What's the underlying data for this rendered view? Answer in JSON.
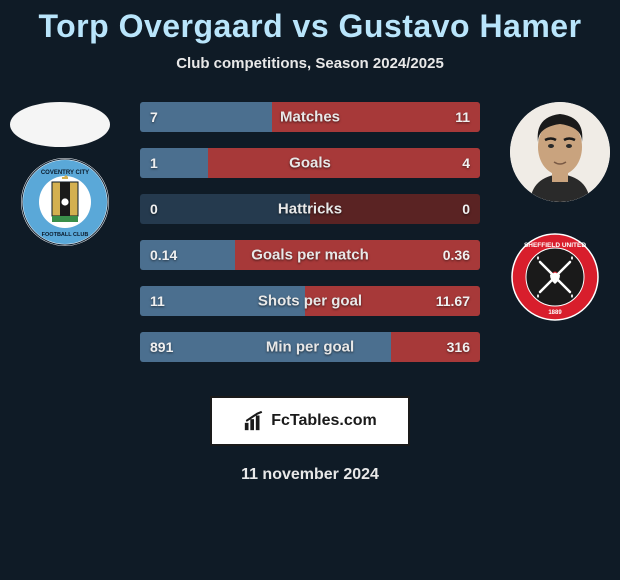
{
  "title": "Torp Overgaard vs Gustavo Hamer",
  "subtitle": "Club competitions, Season 2024/2025",
  "date": "11 november 2024",
  "footer_label": "FcTables.com",
  "colors": {
    "background": "#0f1b26",
    "title": "#b9e5fb",
    "bar_left": "#4b6f8f",
    "bar_right": "#a73939",
    "bar_bg_left": "#253a4e",
    "bar_bg_right": "#5a2323"
  },
  "metrics": [
    {
      "label": "Matches",
      "left_val": "7",
      "right_val": "11",
      "left_pct": 38.9,
      "right_pct": 61.1
    },
    {
      "label": "Goals",
      "left_val": "1",
      "right_val": "4",
      "left_pct": 20.0,
      "right_pct": 80.0
    },
    {
      "label": "Hattricks",
      "left_val": "0",
      "right_val": "0",
      "left_pct": 0.0,
      "right_pct": 0.0
    },
    {
      "label": "Goals per match",
      "left_val": "0.14",
      "right_val": "0.36",
      "left_pct": 28.0,
      "right_pct": 72.0
    },
    {
      "label": "Shots per goal",
      "left_val": "11",
      "right_val": "11.67",
      "left_pct": 48.5,
      "right_pct": 51.5
    },
    {
      "label": "Min per goal",
      "left_val": "891",
      "right_val": "316",
      "left_pct": 73.8,
      "right_pct": 26.2
    }
  ]
}
